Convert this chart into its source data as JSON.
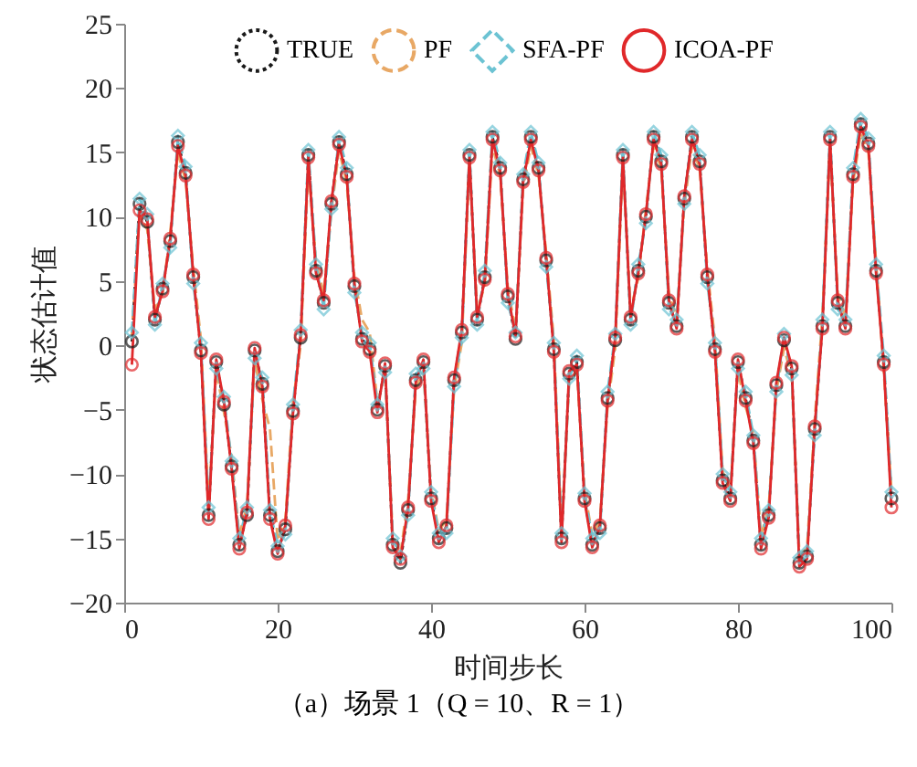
{
  "chart_data": {
    "type": "line",
    "xlabel": "时间步长",
    "ylabel": "状态估计值",
    "annotations": [
      "（a）场景 1（Q = 10、R = 1）"
    ],
    "xlim": [
      0,
      100
    ],
    "ylim": [
      -20,
      25
    ],
    "xticks": [
      0,
      20,
      40,
      60,
      80,
      100
    ],
    "yticks": [
      -20,
      -15,
      -10,
      -5,
      0,
      5,
      10,
      15,
      20,
      25
    ],
    "legend": "top",
    "x": [
      1,
      2,
      3,
      4,
      5,
      6,
      7,
      8,
      9,
      10,
      11,
      12,
      13,
      14,
      15,
      16,
      17,
      18,
      19,
      20,
      21,
      22,
      23,
      24,
      25,
      26,
      27,
      28,
      29,
      30,
      31,
      32,
      33,
      34,
      35,
      36,
      37,
      38,
      39,
      40,
      41,
      42,
      43,
      44,
      45,
      46,
      47,
      48,
      49,
      50,
      51,
      52,
      53,
      54,
      55,
      56,
      57,
      58,
      59,
      60,
      61,
      62,
      63,
      64,
      65,
      66,
      67,
      68,
      69,
      70,
      71,
      72,
      73,
      74,
      75,
      76,
      77,
      78,
      79,
      80,
      81,
      82,
      83,
      84,
      85,
      86,
      87,
      88,
      89,
      90,
      91,
      92,
      93,
      94,
      95,
      96,
      97,
      98,
      99,
      100
    ],
    "series": [
      {
        "name": "TRUE",
        "color": "#1a1a1a",
        "marker": "circle",
        "line_style": "dotted",
        "values": [
          0.3,
          11,
          9.6,
          2,
          4.4,
          8.1,
          15.8,
          13.4,
          5.3,
          -0.4,
          -13.2,
          -1.3,
          -4.6,
          -9.4,
          -15.5,
          -13.2,
          -0.4,
          -3,
          -13.2,
          -16,
          -14.3,
          -5.1,
          0.6,
          14.8,
          5.8,
          3.3,
          11,
          15.8,
          13.3,
          4.6,
          0.5,
          -0.3,
          -5,
          -1.6,
          -15.5,
          -16.9,
          -12.8,
          -2.7,
          -1.3,
          -11.9,
          -15,
          -14.2,
          -2.7,
          1,
          14.8,
          2,
          5.3,
          16.2,
          13.8,
          3.8,
          0.5,
          12.9,
          16.2,
          13.8,
          6.6,
          -0.3,
          -15,
          -2.2,
          -1.3,
          -11.9,
          -15.5,
          -14.2,
          -4.1,
          0.4,
          14.8,
          2,
          5.8,
          10,
          16.2,
          14.3,
          3.3,
          1.5,
          11.4,
          16.2,
          14.3,
          5.3,
          -0.3,
          -10.5,
          -11.9,
          -1.3,
          -4.1,
          -7.4,
          -15.5,
          -13.2,
          -3.1,
          0.4,
          -1.8,
          -16.9,
          -16.4,
          -6.5,
          1.5,
          16.2,
          3.3,
          1.5,
          13.3,
          17.2,
          15.7,
          5.8,
          -1.3,
          -11.9
        ]
      },
      {
        "name": "PF",
        "color": "#e8a865",
        "marker": "none",
        "line_style": "dashed",
        "values": [
          0.8,
          10.2,
          9,
          2.8,
          4,
          8.8,
          15,
          12.8,
          6,
          0.5,
          -12.5,
          -2,
          -5.2,
          -8.6,
          -14.8,
          -12.4,
          -1.2,
          -4.2,
          -6.5,
          -15.2,
          -13.6,
          -4.4,
          0,
          14,
          6.5,
          4,
          10.4,
          15.2,
          12.6,
          5.4,
          2,
          1,
          -4.4,
          -2.2,
          -14.8,
          -16.2,
          -12,
          -3.4,
          -2,
          -11.2,
          -14.4,
          -13.6,
          -3.4,
          0.2,
          14.2,
          2.8,
          4.6,
          15.5,
          13.2,
          4.5,
          1.2,
          12.2,
          15.5,
          13.2,
          7.2,
          0.4,
          -14.4,
          -2.8,
          -2,
          -11.2,
          -14.8,
          -13.6,
          -4.8,
          -0.2,
          14.2,
          2.8,
          5.2,
          10.6,
          15.5,
          13.7,
          4,
          2.2,
          10.8,
          15.5,
          13.7,
          6,
          0.4,
          -9.8,
          -11.2,
          -2,
          -4.8,
          -6.8,
          -14.8,
          -12.6,
          -3.6,
          -0.2,
          -2.4,
          -16.2,
          -15.8,
          -5.8,
          2.2,
          15.5,
          4,
          2.2,
          12.6,
          16.5,
          15,
          6.5,
          -2,
          -11.2
        ]
      },
      {
        "name": "SFA-PF",
        "color": "#6cc3d3",
        "marker": "diamond",
        "line_style": "dashed",
        "values": [
          1,
          11.4,
          10.2,
          1.6,
          4.8,
          7.6,
          16.3,
          13.9,
          4.8,
          0.2,
          -12.6,
          -1.8,
          -4,
          -9,
          -15,
          -12.6,
          -1,
          -2.5,
          -12.8,
          -15.6,
          -14.7,
          -4.6,
          1.2,
          15.2,
          6.3,
          2.8,
          10.6,
          16.2,
          13.8,
          4.1,
          1,
          0.2,
          -4.6,
          -2.1,
          -15,
          -16.4,
          -13.2,
          -2.2,
          -1.8,
          -11.4,
          -14.6,
          -14.6,
          -3.2,
          0.6,
          15.2,
          1.6,
          5.8,
          16.6,
          14.2,
          3.3,
          1,
          13.3,
          16.6,
          14.2,
          6.1,
          0.2,
          -14.6,
          -2.6,
          -0.8,
          -11.5,
          -15,
          -14.6,
          -3.6,
          0.9,
          15.2,
          1.6,
          6.3,
          9.5,
          16.6,
          14.8,
          2.8,
          2,
          11,
          16.6,
          14.8,
          4.8,
          0.2,
          -10,
          -11.4,
          -1.8,
          -3.6,
          -7,
          -15,
          -12.8,
          -3.6,
          0.9,
          -2.3,
          -16.5,
          -16,
          -7,
          2,
          16.6,
          2.8,
          2,
          13.8,
          17.6,
          16.1,
          6.3,
          -0.8,
          -11.4
        ]
      },
      {
        "name": "ICOA-PF",
        "color": "#e0282a",
        "marker": "circle",
        "line_style": "solid",
        "values": [
          -1.5,
          10.5,
          9.8,
          2.2,
          4.2,
          8.3,
          15.5,
          13.2,
          5.5,
          -0.6,
          -13.5,
          -1.1,
          -4.4,
          -9.6,
          -15.8,
          -13,
          -0.2,
          -3.2,
          -13.5,
          -16.2,
          -14,
          -5.3,
          0.8,
          14.6,
          5.6,
          3.5,
          11.2,
          15.6,
          13.1,
          4.8,
          0.3,
          -0.5,
          -5.2,
          -1.4,
          -15.7,
          -16.6,
          -12.6,
          -2.9,
          -1.1,
          -12.1,
          -15.3,
          -14,
          -2.5,
          1.2,
          14.6,
          2.2,
          5.1,
          16,
          13.6,
          4,
          0.7,
          12.7,
          16,
          13.6,
          6.8,
          -0.5,
          -15.3,
          -2,
          -1.5,
          -12.1,
          -15.7,
          -14,
          -4.3,
          0.6,
          14.6,
          2.2,
          5.6,
          10.2,
          16,
          14.1,
          3.5,
          1.3,
          11.6,
          16,
          14.1,
          5.5,
          -0.5,
          -10.7,
          -12.1,
          -1.1,
          -4.3,
          -7.6,
          -15.8,
          -13.4,
          -2.9,
          0.6,
          -1.6,
          -17.2,
          -16.6,
          -6.3,
          1.3,
          16,
          3.5,
          1.3,
          13.1,
          17,
          15.5,
          5.6,
          -1.5,
          -12.6
        ]
      }
    ]
  }
}
